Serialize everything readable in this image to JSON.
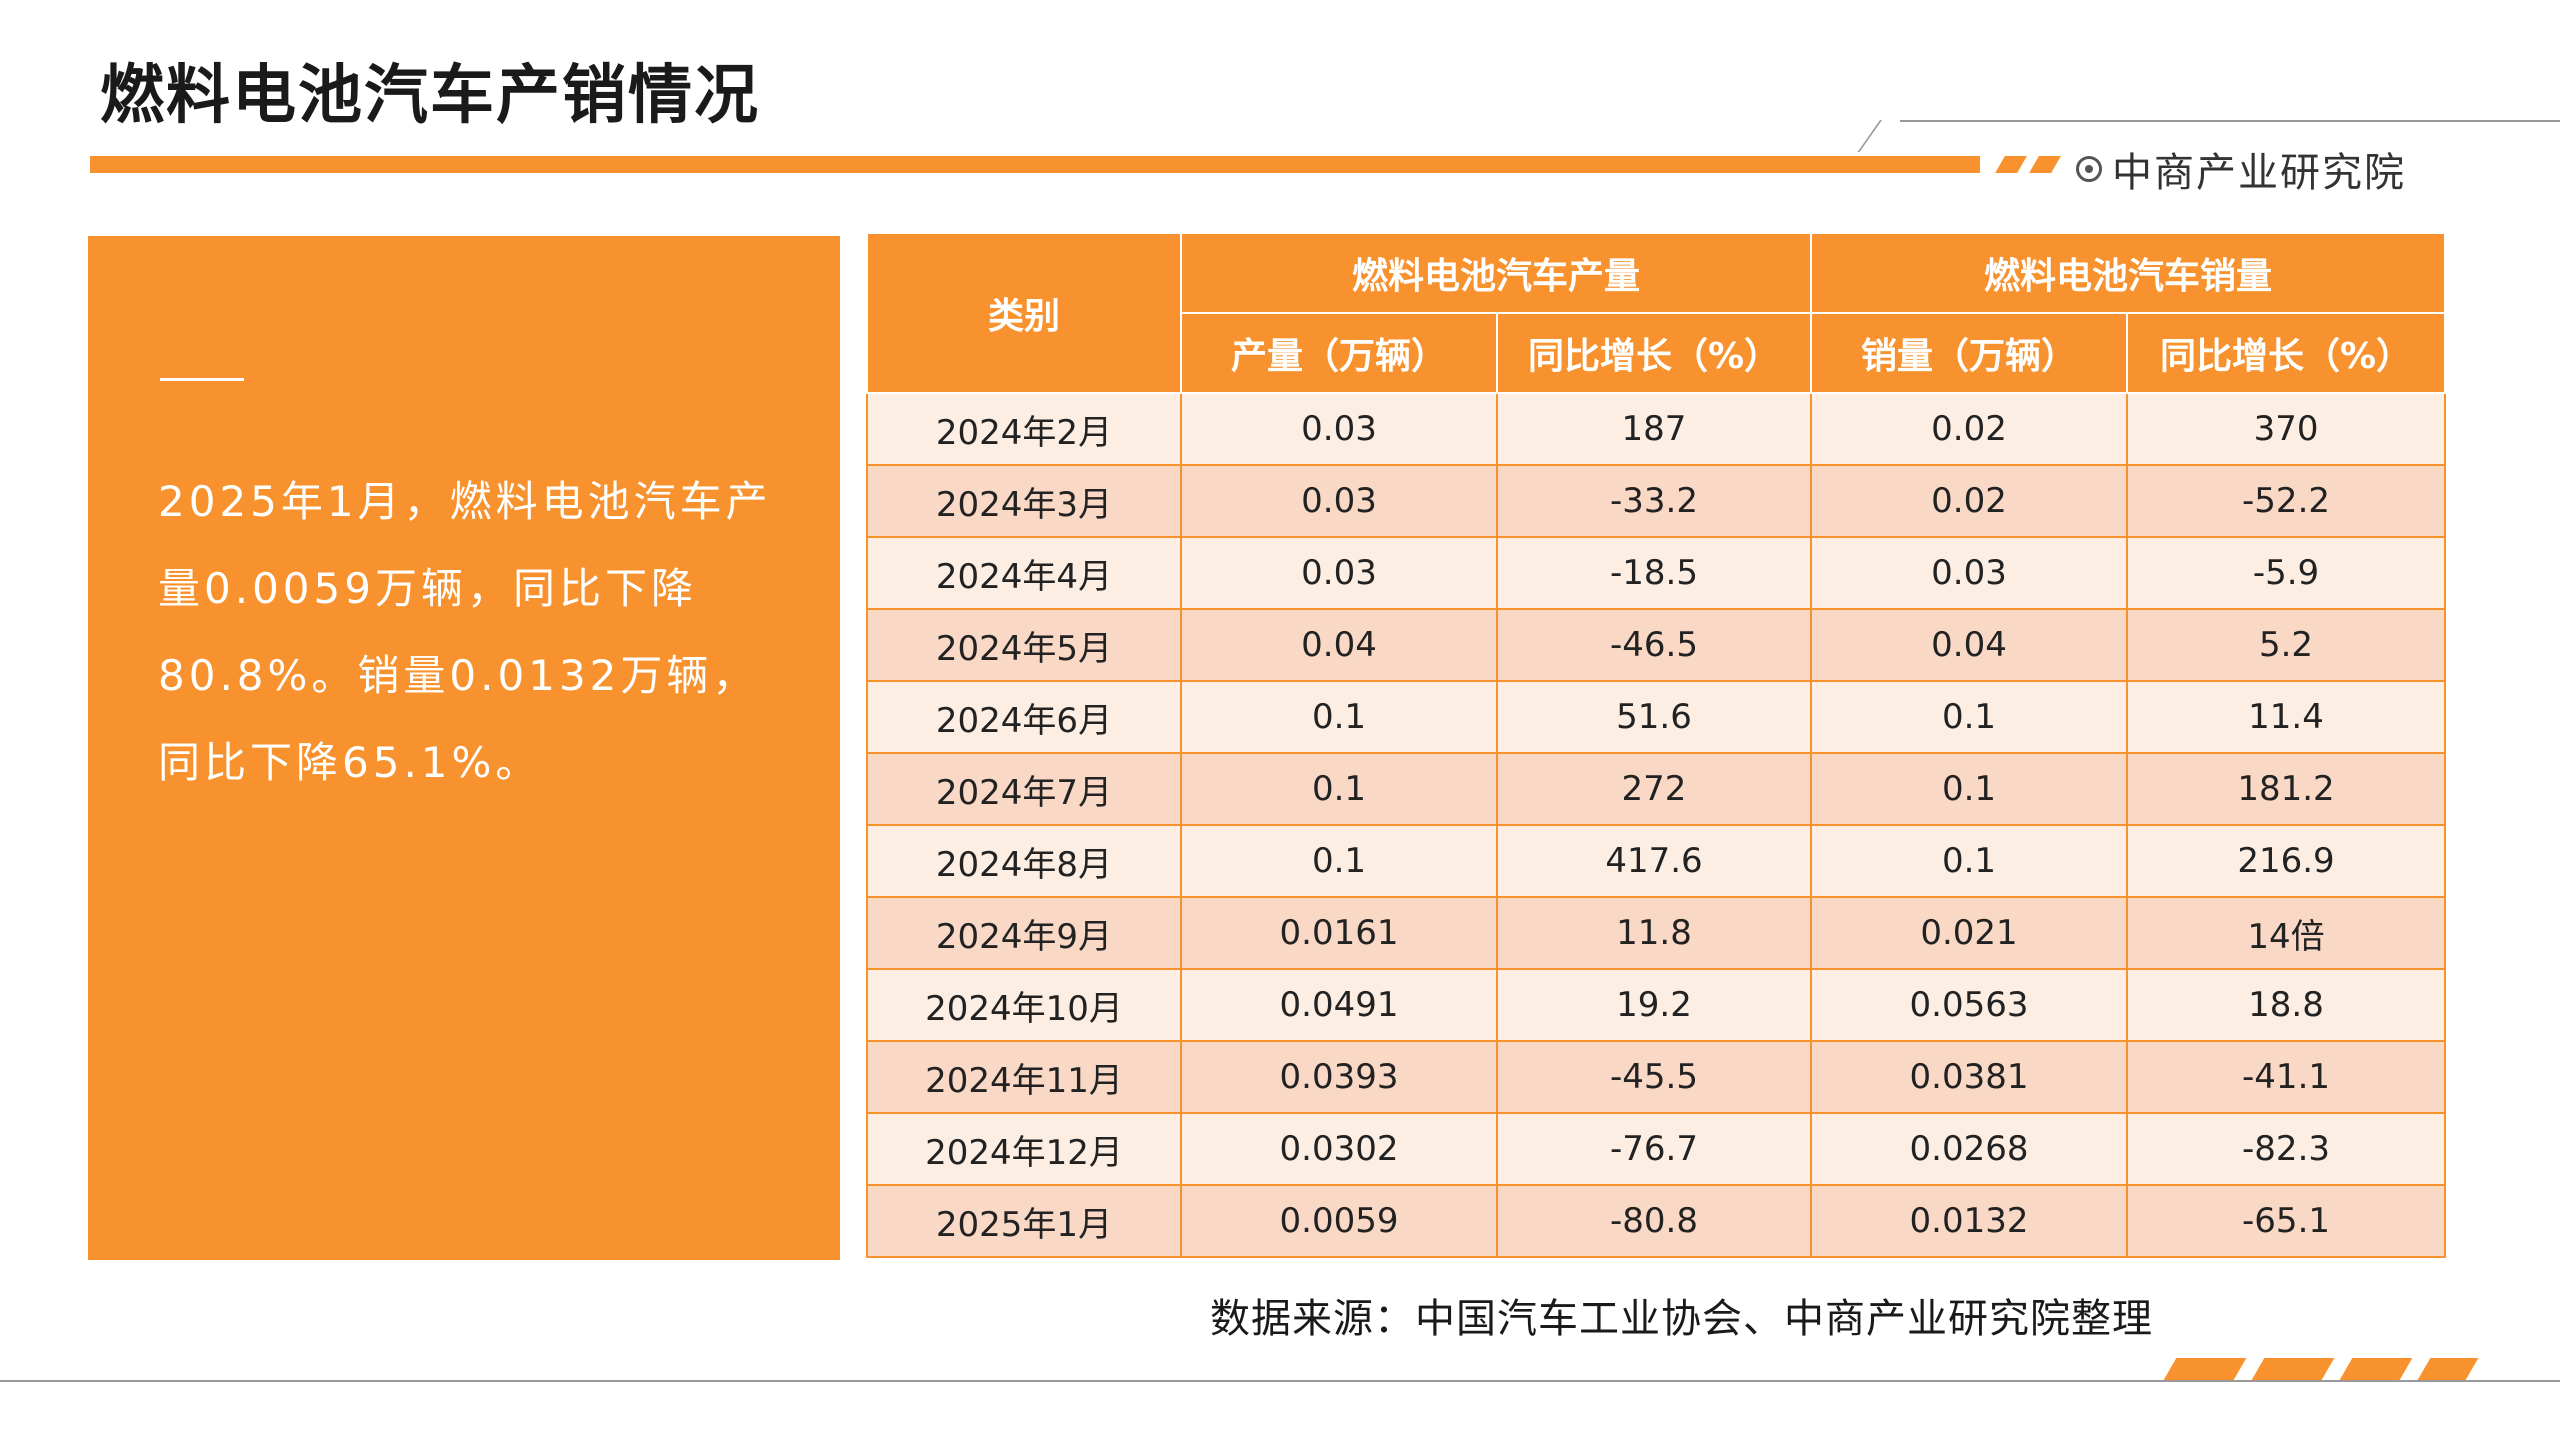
{
  "header": {
    "title": "燃料电池汽车产销情况",
    "brand": "中商产业研究院"
  },
  "summary": {
    "text": "2025年1月，燃料电池汽车产量0.0059万辆，同比下降80.8%。销量0.0132万辆，同比下降65.1%。"
  },
  "table": {
    "category_header": "类别",
    "group_headers": [
      "燃料电池汽车产量",
      "燃料电池汽车销量"
    ],
    "sub_headers": [
      "产量（万辆）",
      "同比增长（%）",
      "销量（万辆）",
      "同比增长（%）"
    ],
    "rows": [
      [
        "2024年2月",
        "0.03",
        "187",
        "0.02",
        "370"
      ],
      [
        "2024年3月",
        "0.03",
        "-33.2",
        "0.02",
        "-52.2"
      ],
      [
        "2024年4月",
        "0.03",
        "-18.5",
        "0.03",
        "-5.9"
      ],
      [
        "2024年5月",
        "0.04",
        "-46.5",
        "0.04",
        "5.2"
      ],
      [
        "2024年6月",
        "0.1",
        "51.6",
        "0.1",
        "11.4"
      ],
      [
        "2024年7月",
        "0.1",
        "272",
        "0.1",
        "181.2"
      ],
      [
        "2024年8月",
        "0.1",
        "417.6",
        "0.1",
        "216.9"
      ],
      [
        "2024年9月",
        "0.0161",
        "11.8",
        "0.021",
        "14倍"
      ],
      [
        "2024年10月",
        "0.0491",
        "19.2",
        "0.0563",
        "18.8"
      ],
      [
        "2024年11月",
        "0.0393",
        "-45.5",
        "0.0381",
        "-41.1"
      ],
      [
        "2024年12月",
        "0.0302",
        "-76.7",
        "0.0268",
        "-82.3"
      ],
      [
        "2025年1月",
        "0.0059",
        "-80.8",
        "0.0132",
        "-65.1"
      ]
    ]
  },
  "source": "数据来源：中国汽车工业协会、中商产业研究院整理",
  "colors": {
    "accent": "#f7922e",
    "row_light": "#fdeee3",
    "row_dark": "#fad8c6"
  },
  "icons": {
    "brand": "target-circle-icon"
  }
}
